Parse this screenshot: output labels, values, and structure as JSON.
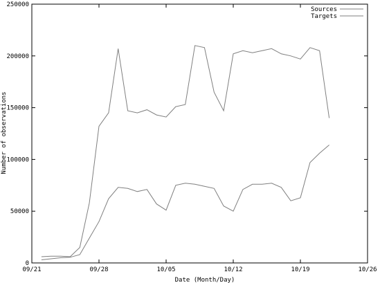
{
  "chart_data": {
    "type": "line",
    "title": "",
    "xlabel": "Date (Month/Day)",
    "ylabel": "Number of observations",
    "x_ticks": [
      "09/21",
      "09/28",
      "10/05",
      "10/12",
      "10/19",
      "10/26"
    ],
    "y_ticks": [
      "0",
      "50000",
      "100000",
      "150000",
      "200000",
      "250000"
    ],
    "xlim_days": [
      0,
      35
    ],
    "ylim": [
      0,
      250000
    ],
    "grid": false,
    "legend_position": "top-right",
    "line_color": "#7f7f7f",
    "series": [
      {
        "name": "Sources",
        "points": [
          [
            1,
            3000
          ],
          [
            2,
            4000
          ],
          [
            3,
            5000
          ],
          [
            4,
            5500
          ],
          [
            5,
            8000
          ],
          [
            6,
            24000
          ],
          [
            7,
            40000
          ],
          [
            8,
            62000
          ],
          [
            9,
            73000
          ],
          [
            10,
            72000
          ],
          [
            11,
            69000
          ],
          [
            12,
            71000
          ],
          [
            13,
            57000
          ],
          [
            14,
            51000
          ],
          [
            15,
            75000
          ],
          [
            16,
            77000
          ],
          [
            17,
            76000
          ],
          [
            18,
            74000
          ],
          [
            19,
            72000
          ],
          [
            20,
            55000
          ],
          [
            21,
            50000
          ],
          [
            22,
            71000
          ],
          [
            23,
            76000
          ],
          [
            24,
            76000
          ],
          [
            25,
            77000
          ],
          [
            26,
            73000
          ],
          [
            27,
            60000
          ],
          [
            28,
            63000
          ],
          [
            29,
            97000
          ],
          [
            30,
            106000
          ],
          [
            31,
            114000
          ]
        ]
      },
      {
        "name": "Targets",
        "points": [
          [
            1,
            6000
          ],
          [
            2,
            6500
          ],
          [
            3,
            6500
          ],
          [
            4,
            6000
          ],
          [
            5,
            15000
          ],
          [
            6,
            58000
          ],
          [
            7,
            132000
          ],
          [
            8,
            145000
          ],
          [
            9,
            207000
          ],
          [
            10,
            147000
          ],
          [
            11,
            145000
          ],
          [
            12,
            148000
          ],
          [
            13,
            143000
          ],
          [
            14,
            141000
          ],
          [
            15,
            151000
          ],
          [
            16,
            153000
          ],
          [
            17,
            210000
          ],
          [
            18,
            208000
          ],
          [
            19,
            165000
          ],
          [
            20,
            147000
          ],
          [
            21,
            202000
          ],
          [
            22,
            205000
          ],
          [
            23,
            203000
          ],
          [
            24,
            205000
          ],
          [
            25,
            207000
          ],
          [
            26,
            202000
          ],
          [
            27,
            200000
          ],
          [
            28,
            197000
          ],
          [
            29,
            208000
          ],
          [
            30,
            205000
          ],
          [
            31,
            140000
          ]
        ]
      }
    ]
  }
}
